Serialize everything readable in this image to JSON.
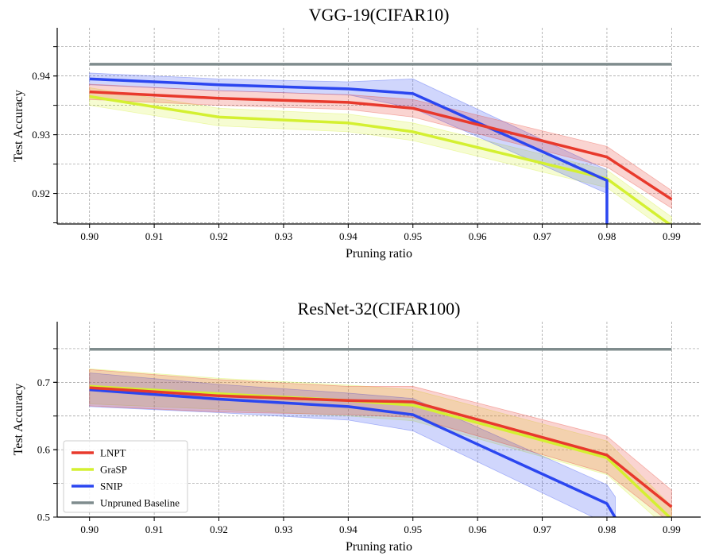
{
  "chart_data": [
    {
      "type": "line",
      "title": "VGG-19(CIFAR10)",
      "xlabel": "Pruning ratio",
      "ylabel": "Test Accuracy",
      "xlim": [
        0.895,
        0.9945
      ],
      "ylim": [
        0.9148,
        0.9482
      ],
      "xticks": [
        "0.90",
        "0.91",
        "0.92",
        "0.93",
        "0.94",
        "0.95",
        "0.96",
        "0.97",
        "0.98",
        "0.99"
      ],
      "yticks": [
        "0.92",
        "0.93",
        "0.94"
      ],
      "ygrid": [
        0.915,
        0.92,
        0.925,
        0.93,
        0.935,
        0.94,
        0.945
      ],
      "grid": true,
      "legend": null,
      "series": [
        {
          "name": "Unpruned Baseline",
          "color": "#7f8c8d",
          "x": [
            0.9,
            0.99
          ],
          "y": [
            0.942,
            0.942
          ]
        },
        {
          "name": "GraSP",
          "color": "#d4f031",
          "x": [
            0.9,
            0.92,
            0.94,
            0.95,
            0.98,
            0.99
          ],
          "y": [
            0.9365,
            0.933,
            0.932,
            0.9305,
            0.9225,
            0.9145
          ],
          "lower": [
            0.935,
            0.9315,
            0.9305,
            0.929,
            0.921,
            0.913
          ],
          "upper": [
            0.938,
            0.9345,
            0.9335,
            0.932,
            0.924,
            0.916
          ]
        },
        {
          "name": "SNIP",
          "color": "#2b46f0",
          "x": [
            0.9,
            0.92,
            0.94,
            0.95,
            0.98,
            0.98
          ],
          "y": [
            0.9395,
            0.9385,
            0.9378,
            0.937,
            0.9222,
            0.9145
          ],
          "lower": [
            0.9385,
            0.9375,
            0.9368,
            0.9345,
            0.92,
            0.9145
          ],
          "upper": [
            0.9405,
            0.9395,
            0.939,
            0.9395,
            0.924,
            0.9145
          ]
        },
        {
          "name": "LNPT",
          "color": "#e8392c",
          "x": [
            0.9,
            0.92,
            0.94,
            0.95,
            0.98,
            0.99
          ],
          "y": [
            0.9373,
            0.9362,
            0.9355,
            0.9345,
            0.9262,
            0.919
          ],
          "lower": [
            0.936,
            0.935,
            0.9343,
            0.933,
            0.9245,
            0.9175
          ],
          "upper": [
            0.9386,
            0.9375,
            0.9368,
            0.936,
            0.928,
            0.9205
          ]
        }
      ]
    },
    {
      "type": "line",
      "title": "ResNet-32(CIFAR100)",
      "xlabel": "Pruning ratio",
      "ylabel": "Test Accuracy",
      "xlim": [
        0.895,
        0.9945
      ],
      "ylim": [
        0.5,
        0.79
      ],
      "xticks": [
        "0.90",
        "0.91",
        "0.92",
        "0.93",
        "0.94",
        "0.95",
        "0.96",
        "0.97",
        "0.98",
        "0.99"
      ],
      "yticks": [
        "0.5",
        "0.6",
        "0.7"
      ],
      "ygrid": [
        0.55,
        0.6,
        0.65,
        0.7,
        0.75
      ],
      "grid": true,
      "legend": "lower-left",
      "series": [
        {
          "name": "Unpruned Baseline",
          "color": "#7f8c8d",
          "x": [
            0.9,
            0.99
          ],
          "y": [
            0.749,
            0.749
          ]
        },
        {
          "name": "GraSP",
          "color": "#d4f031",
          "x": [
            0.9,
            0.92,
            0.94,
            0.95,
            0.98,
            0.99
          ],
          "y": [
            0.694,
            0.683,
            0.673,
            0.666,
            0.588,
            0.497
          ],
          "lower": [
            0.668,
            0.66,
            0.65,
            0.643,
            0.563,
            0.478
          ],
          "upper": [
            0.72,
            0.706,
            0.696,
            0.689,
            0.613,
            0.516
          ]
        },
        {
          "name": "SNIP",
          "color": "#2b46f0",
          "x": [
            0.9,
            0.92,
            0.94,
            0.95,
            0.98,
            0.9813
          ],
          "y": [
            0.689,
            0.675,
            0.664,
            0.652,
            0.52,
            0.499
          ],
          "lower": [
            0.664,
            0.655,
            0.644,
            0.628,
            0.49,
            0.47
          ],
          "upper": [
            0.714,
            0.697,
            0.684,
            0.676,
            0.548,
            0.53
          ]
        },
        {
          "name": "LNPT",
          "color": "#e8392c",
          "x": [
            0.9,
            0.92,
            0.94,
            0.95,
            0.98,
            0.99
          ],
          "y": [
            0.692,
            0.68,
            0.673,
            0.671,
            0.592,
            0.515
          ],
          "lower": [
            0.665,
            0.656,
            0.652,
            0.648,
            0.565,
            0.49
          ],
          "upper": [
            0.719,
            0.704,
            0.694,
            0.694,
            0.62,
            0.54
          ]
        }
      ]
    }
  ]
}
